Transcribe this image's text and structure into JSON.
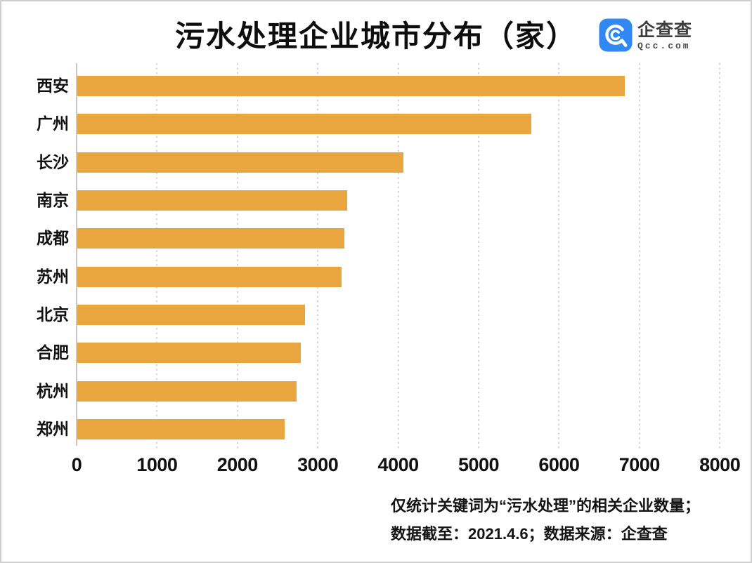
{
  "title": "污水处理企业城市分布（家）",
  "logo": {
    "icon": "qcc-magnifier-icon",
    "brand": "企查查",
    "site": "Qcc.com"
  },
  "colors": {
    "bar": "#E9A53E",
    "grid_line": "#D5D5D5",
    "axis_line": "#C6C6C6",
    "logo_blue": "#3288F2",
    "border": "#CFCFCF",
    "text": "#111111"
  },
  "chart_data": {
    "type": "bar",
    "orientation": "horizontal",
    "title": "污水处理企业城市分布（家）",
    "unit": "家",
    "categories": [
      "西安",
      "广州",
      "长沙",
      "南京",
      "成都",
      "苏州",
      "北京",
      "合肥",
      "杭州",
      "郑州"
    ],
    "values": [
      6810,
      5650,
      4060,
      3360,
      3320,
      3290,
      2830,
      2780,
      2730,
      2580
    ],
    "xlim": [
      0,
      8000
    ],
    "xticks": [
      0,
      1000,
      2000,
      3000,
      4000,
      5000,
      6000,
      7000,
      8000
    ],
    "grid": "vertical-dotted",
    "legend": "none"
  },
  "footer": {
    "line1": "仅统计关键词为“污水处理”的相关企业数量；",
    "line2": "数据截至：2021.4.6；数据来源：企查查"
  }
}
